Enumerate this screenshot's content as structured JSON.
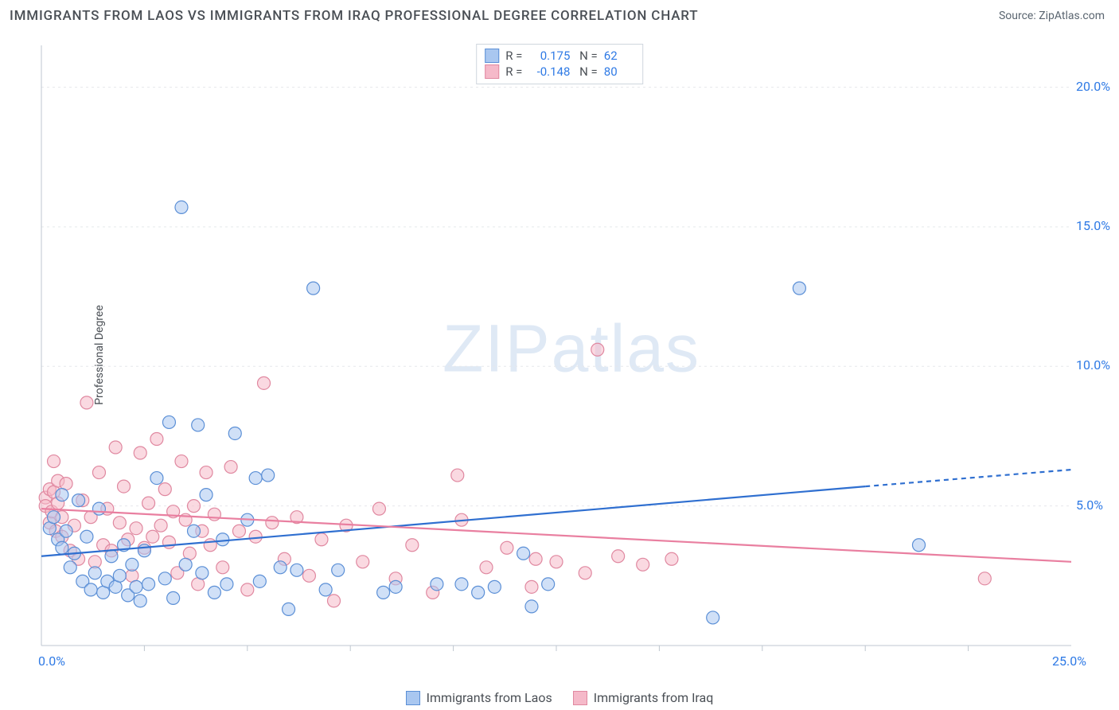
{
  "title": "IMMIGRANTS FROM LAOS VS IMMIGRANTS FROM IRAQ PROFESSIONAL DEGREE CORRELATION CHART",
  "source": "Source: ZipAtlas.com",
  "watermark": "ZIPatlas",
  "ylabel": "Professional Degree",
  "chart": {
    "type": "scatter-with-regression",
    "background_color": "#ffffff",
    "plot_border_color": "#bfc7d0",
    "grid_color": "#e6e8eb",
    "grid_dash": "3,4",
    "xlim": [
      0,
      25
    ],
    "ylim": [
      0,
      21.5
    ],
    "x_ticks": [
      0,
      25
    ],
    "x_tick_labels": [
      "0.0%",
      "25.0%"
    ],
    "x_minor_ticks": [
      2.5,
      5,
      7.5,
      10,
      12.5,
      15,
      17.5,
      20,
      22.5
    ],
    "y_ticks": [
      5,
      10,
      15,
      20
    ],
    "y_tick_labels": [
      "5.0%",
      "10.0%",
      "15.0%",
      "20.0%"
    ],
    "tick_fontsize": 16,
    "tick_color": "#2f7ae5",
    "marker_radius": 8,
    "marker_opacity": 0.55,
    "line_width": 2.2,
    "series": [
      {
        "name": "Immigrants from Laos",
        "color_fill": "#a9c7f0",
        "color_stroke": "#5b8fd6",
        "line_color": "#2f6fd0",
        "R": 0.175,
        "N": 62,
        "regression": {
          "x1": 0,
          "y1": 3.2,
          "x2": 20,
          "y2": 5.7,
          "dashed_after_x": 20,
          "x3": 25,
          "y3": 6.3
        },
        "points": [
          [
            0.2,
            4.2
          ],
          [
            0.3,
            4.6
          ],
          [
            0.4,
            3.8
          ],
          [
            0.5,
            3.5
          ],
          [
            0.5,
            5.4
          ],
          [
            0.6,
            4.1
          ],
          [
            0.7,
            2.8
          ],
          [
            0.8,
            3.3
          ],
          [
            0.9,
            5.2
          ],
          [
            1.0,
            2.3
          ],
          [
            1.1,
            3.9
          ],
          [
            1.2,
            2.0
          ],
          [
            1.3,
            2.6
          ],
          [
            1.4,
            4.9
          ],
          [
            1.5,
            1.9
          ],
          [
            1.6,
            2.3
          ],
          [
            1.7,
            3.2
          ],
          [
            1.8,
            2.1
          ],
          [
            1.9,
            2.5
          ],
          [
            2.0,
            3.6
          ],
          [
            2.1,
            1.8
          ],
          [
            2.2,
            2.9
          ],
          [
            2.3,
            2.1
          ],
          [
            2.4,
            1.6
          ],
          [
            2.5,
            3.4
          ],
          [
            2.6,
            2.2
          ],
          [
            2.8,
            6.0
          ],
          [
            3.0,
            2.4
          ],
          [
            3.1,
            8.0
          ],
          [
            3.2,
            1.7
          ],
          [
            3.4,
            15.7
          ],
          [
            3.5,
            2.9
          ],
          [
            3.7,
            4.1
          ],
          [
            3.8,
            7.9
          ],
          [
            3.9,
            2.6
          ],
          [
            4.0,
            5.4
          ],
          [
            4.2,
            1.9
          ],
          [
            4.4,
            3.8
          ],
          [
            4.5,
            2.2
          ],
          [
            4.7,
            7.6
          ],
          [
            5.0,
            4.5
          ],
          [
            5.2,
            6.0
          ],
          [
            5.3,
            2.3
          ],
          [
            5.5,
            6.1
          ],
          [
            5.8,
            2.8
          ],
          [
            6.0,
            1.3
          ],
          [
            6.2,
            2.7
          ],
          [
            6.6,
            12.8
          ],
          [
            6.9,
            2.0
          ],
          [
            7.2,
            2.7
          ],
          [
            8.3,
            1.9
          ],
          [
            8.6,
            2.1
          ],
          [
            9.6,
            2.2
          ],
          [
            10.2,
            2.2
          ],
          [
            10.6,
            1.9
          ],
          [
            11.0,
            2.1
          ],
          [
            11.7,
            3.3
          ],
          [
            11.9,
            1.4
          ],
          [
            12.3,
            2.2
          ],
          [
            16.3,
            1.0
          ],
          [
            18.4,
            12.8
          ],
          [
            21.3,
            3.6
          ]
        ]
      },
      {
        "name": "Immigrants from Iraq",
        "color_fill": "#f5b9c9",
        "color_stroke": "#e088a0",
        "line_color": "#e97fa0",
        "R": -0.148,
        "N": 80,
        "regression": {
          "x1": 0,
          "y1": 4.9,
          "x2": 25,
          "y2": 3.0
        },
        "points": [
          [
            0.1,
            5.3
          ],
          [
            0.1,
            5.0
          ],
          [
            0.2,
            5.6
          ],
          [
            0.2,
            4.4
          ],
          [
            0.25,
            4.8
          ],
          [
            0.3,
            5.5
          ],
          [
            0.3,
            6.6
          ],
          [
            0.35,
            4.1
          ],
          [
            0.4,
            5.9
          ],
          [
            0.4,
            5.1
          ],
          [
            0.5,
            3.9
          ],
          [
            0.5,
            4.6
          ],
          [
            0.6,
            5.8
          ],
          [
            0.7,
            3.4
          ],
          [
            0.8,
            4.3
          ],
          [
            0.9,
            3.1
          ],
          [
            1.0,
            5.2
          ],
          [
            1.1,
            8.7
          ],
          [
            1.2,
            4.6
          ],
          [
            1.3,
            3.0
          ],
          [
            1.4,
            6.2
          ],
          [
            1.5,
            3.6
          ],
          [
            1.6,
            4.9
          ],
          [
            1.7,
            3.4
          ],
          [
            1.8,
            7.1
          ],
          [
            1.9,
            4.4
          ],
          [
            2.0,
            5.7
          ],
          [
            2.1,
            3.8
          ],
          [
            2.2,
            2.5
          ],
          [
            2.3,
            4.2
          ],
          [
            2.4,
            6.9
          ],
          [
            2.5,
            3.5
          ],
          [
            2.6,
            5.1
          ],
          [
            2.7,
            3.9
          ],
          [
            2.8,
            7.4
          ],
          [
            2.9,
            4.3
          ],
          [
            3.0,
            5.6
          ],
          [
            3.1,
            3.7
          ],
          [
            3.2,
            4.8
          ],
          [
            3.3,
            2.6
          ],
          [
            3.4,
            6.6
          ],
          [
            3.5,
            4.5
          ],
          [
            3.6,
            3.3
          ],
          [
            3.7,
            5.0
          ],
          [
            3.8,
            2.2
          ],
          [
            3.9,
            4.1
          ],
          [
            4.0,
            6.2
          ],
          [
            4.1,
            3.6
          ],
          [
            4.2,
            4.7
          ],
          [
            4.4,
            2.8
          ],
          [
            4.6,
            6.4
          ],
          [
            4.8,
            4.1
          ],
          [
            5.0,
            2.0
          ],
          [
            5.2,
            3.9
          ],
          [
            5.4,
            9.4
          ],
          [
            5.6,
            4.4
          ],
          [
            5.9,
            3.1
          ],
          [
            6.2,
            4.6
          ],
          [
            6.5,
            2.5
          ],
          [
            6.8,
            3.8
          ],
          [
            7.1,
            1.6
          ],
          [
            7.4,
            4.3
          ],
          [
            7.8,
            3.0
          ],
          [
            8.2,
            4.9
          ],
          [
            8.6,
            2.4
          ],
          [
            9.0,
            3.6
          ],
          [
            9.5,
            1.9
          ],
          [
            10.1,
            6.1
          ],
          [
            10.2,
            4.5
          ],
          [
            10.8,
            2.8
          ],
          [
            11.3,
            3.5
          ],
          [
            11.9,
            2.1
          ],
          [
            12.0,
            3.1
          ],
          [
            12.5,
            3.0
          ],
          [
            13.2,
            2.6
          ],
          [
            13.5,
            10.6
          ],
          [
            14.0,
            3.2
          ],
          [
            14.6,
            2.9
          ],
          [
            15.3,
            3.1
          ],
          [
            22.9,
            2.4
          ]
        ]
      }
    ]
  },
  "legend_bottom": [
    {
      "label": "Immigrants from Laos",
      "fill": "#a9c7f0",
      "stroke": "#5b8fd6"
    },
    {
      "label": "Immigrants from Iraq",
      "fill": "#f5b9c9",
      "stroke": "#e088a0"
    }
  ]
}
